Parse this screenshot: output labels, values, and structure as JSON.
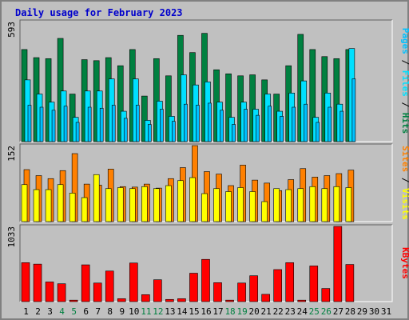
{
  "chart_data": {
    "type": "bar",
    "title": "Daily usage for February 2023",
    "colors": {
      "hits": "#008040",
      "files": "#00e0ff",
      "pages": "#00c0ff",
      "visits": "#ffff00",
      "sites": "#ff8000",
      "kbytes": "#ff0000",
      "weekend_tick": "#008040",
      "tick": "#000000",
      "panel_bg": "#c0c0c0"
    },
    "categories": [
      "1",
      "2",
      "3",
      "4",
      "5",
      "6",
      "7",
      "8",
      "9",
      "10",
      "11",
      "12",
      "13",
      "14",
      "15",
      "16",
      "17",
      "18",
      "19",
      "20",
      "21",
      "22",
      "23",
      "24",
      "25",
      "26",
      "27",
      "28",
      "29",
      "30",
      "31"
    ],
    "weekend_days": [
      "4",
      "5",
      "11",
      "12",
      "18",
      "19",
      "25",
      "26"
    ],
    "panels": [
      {
        "ymax_label": "593",
        "ylim": [
          0,
          593
        ],
        "side_label": [
          {
            "text": "Pages",
            "series": "pages"
          },
          {
            "text": " / ",
            "series": "sep"
          },
          {
            "text": "Files",
            "series": "files"
          },
          {
            "text": " / ",
            "series": "sep"
          },
          {
            "text": "Hits",
            "series": "hits"
          }
        ],
        "series": [
          {
            "name": "Hits",
            "key": "hits",
            "values": [
              455,
              415,
              410,
              510,
              235,
              405,
              400,
              415,
              375,
              455,
              225,
              410,
              325,
              525,
              440,
              535,
              355,
              335,
              325,
              330,
              305,
              235,
              375,
              530,
              455,
              420,
              410,
              455,
              null,
              null,
              null
            ]
          },
          {
            "name": "Files",
            "key": "files",
            "values": [
              305,
              235,
              195,
              250,
              120,
              250,
              250,
              310,
              150,
              310,
              105,
              200,
              125,
              330,
              280,
              295,
              195,
              120,
              195,
              160,
              235,
              150,
              240,
              300,
              120,
              240,
              185,
              460,
              null,
              null,
              null
            ]
          },
          {
            "name": "Pages",
            "key": "pages",
            "values": [
              180,
              170,
              155,
              175,
              95,
              170,
              165,
              180,
              115,
              180,
              85,
              160,
              100,
              185,
              180,
              190,
              155,
              85,
              160,
              130,
              175,
              125,
              170,
              185,
              95,
              170,
              150,
              310,
              null,
              null,
              null
            ]
          }
        ]
      },
      {
        "ymax_label": "152",
        "ylim": [
          0,
          152
        ],
        "side_label": [
          {
            "text": "Sites",
            "series": "sites"
          },
          {
            "text": " / ",
            "series": "sep"
          },
          {
            "text": "Visits",
            "series": "visits"
          }
        ],
        "series": [
          {
            "name": "Visits",
            "key": "visits",
            "values": [
              74,
              64,
              64,
              74,
              57,
              48,
              94,
              66,
              68,
              66,
              70,
              66,
              72,
              82,
              88,
              56,
              66,
              60,
              68,
              60,
              40,
              66,
              64,
              66,
              70,
              66,
              70,
              68,
              null,
              null,
              null
            ]
          },
          {
            "name": "Sites",
            "key": "sites",
            "values": [
              104,
              92,
              86,
              102,
              136,
              75,
              73,
              105,
              70,
              69,
              75,
              67,
              86,
              108,
              152,
              100,
              95,
              72,
              113,
              83,
              77,
              62,
              84,
              106,
              89,
              92,
              96,
              103,
              null,
              null,
              null
            ]
          }
        ]
      },
      {
        "ymax_label": "1033",
        "ylim": [
          0,
          1033
        ],
        "side_label": [
          {
            "text": "KBytes",
            "series": "kbytes"
          }
        ],
        "series": [
          {
            "name": "KBytes",
            "key": "kbytes",
            "values": [
              535,
              515,
              270,
              245,
              20,
              505,
              255,
              420,
              40,
              530,
              95,
              300,
              30,
              40,
              390,
              580,
              260,
              20,
              255,
              355,
              100,
              440,
              535,
              20,
              490,
              180,
              1033,
              510,
              null,
              null,
              null
            ]
          }
        ]
      }
    ]
  }
}
